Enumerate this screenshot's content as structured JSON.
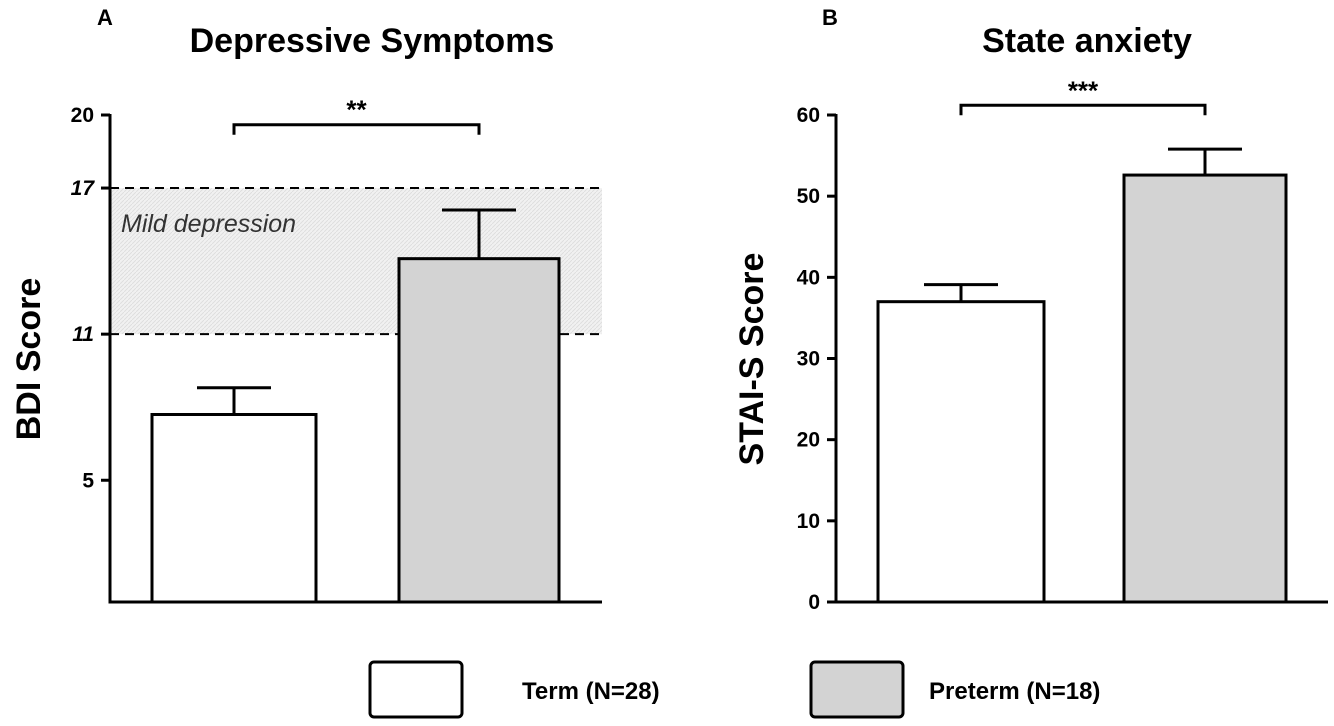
{
  "chart_data": [
    {
      "panel": "A",
      "type": "bar",
      "title": "Depressive Symptoms",
      "xlabel": "",
      "ylabel": "BDI Score",
      "ylim": [
        0,
        20
      ],
      "yticks": [
        {
          "value": 5,
          "label": "5",
          "italic": false
        },
        {
          "value": 11,
          "label": "11",
          "italic": true
        },
        {
          "value": 17,
          "label": "17",
          "italic": true
        },
        {
          "value": 20,
          "label": "20",
          "italic": false
        }
      ],
      "reference_lines": [
        11,
        17
      ],
      "band": {
        "from": 11,
        "to": 17,
        "label": "Mild depression"
      },
      "categories": [
        "Term (N=28)",
        "Preterm (N=18)"
      ],
      "values": [
        7.7,
        14.1
      ],
      "errors": [
        1.1,
        2.0
      ],
      "fills": [
        "#ffffff",
        "#d3d3d3"
      ],
      "significance": {
        "label": "**",
        "height": 19.6
      }
    },
    {
      "panel": "B",
      "type": "bar",
      "title": "State anxiety",
      "xlabel": "",
      "ylabel": "STAI-S Score",
      "ylim": [
        0,
        60
      ],
      "yticks": [
        {
          "value": 0,
          "label": "0",
          "italic": false
        },
        {
          "value": 10,
          "label": "10",
          "italic": false
        },
        {
          "value": 20,
          "label": "20",
          "italic": false
        },
        {
          "value": 30,
          "label": "30",
          "italic": false
        },
        {
          "value": 40,
          "label": "40",
          "italic": false
        },
        {
          "value": 50,
          "label": "50",
          "italic": false
        },
        {
          "value": 60,
          "label": "60",
          "italic": false
        }
      ],
      "categories": [
        "Term (N=28)",
        "Preterm (N=18)"
      ],
      "values": [
        37.0,
        52.6
      ],
      "errors": [
        2.1,
        3.2
      ],
      "fills": [
        "#ffffff",
        "#d3d3d3"
      ],
      "significance": {
        "label": "***",
        "height": 61.2
      }
    }
  ],
  "legend": [
    {
      "label": "Term (N=28)",
      "fill": "#ffffff"
    },
    {
      "label": "Preterm (N=18)",
      "fill": "#d3d3d3"
    }
  ]
}
